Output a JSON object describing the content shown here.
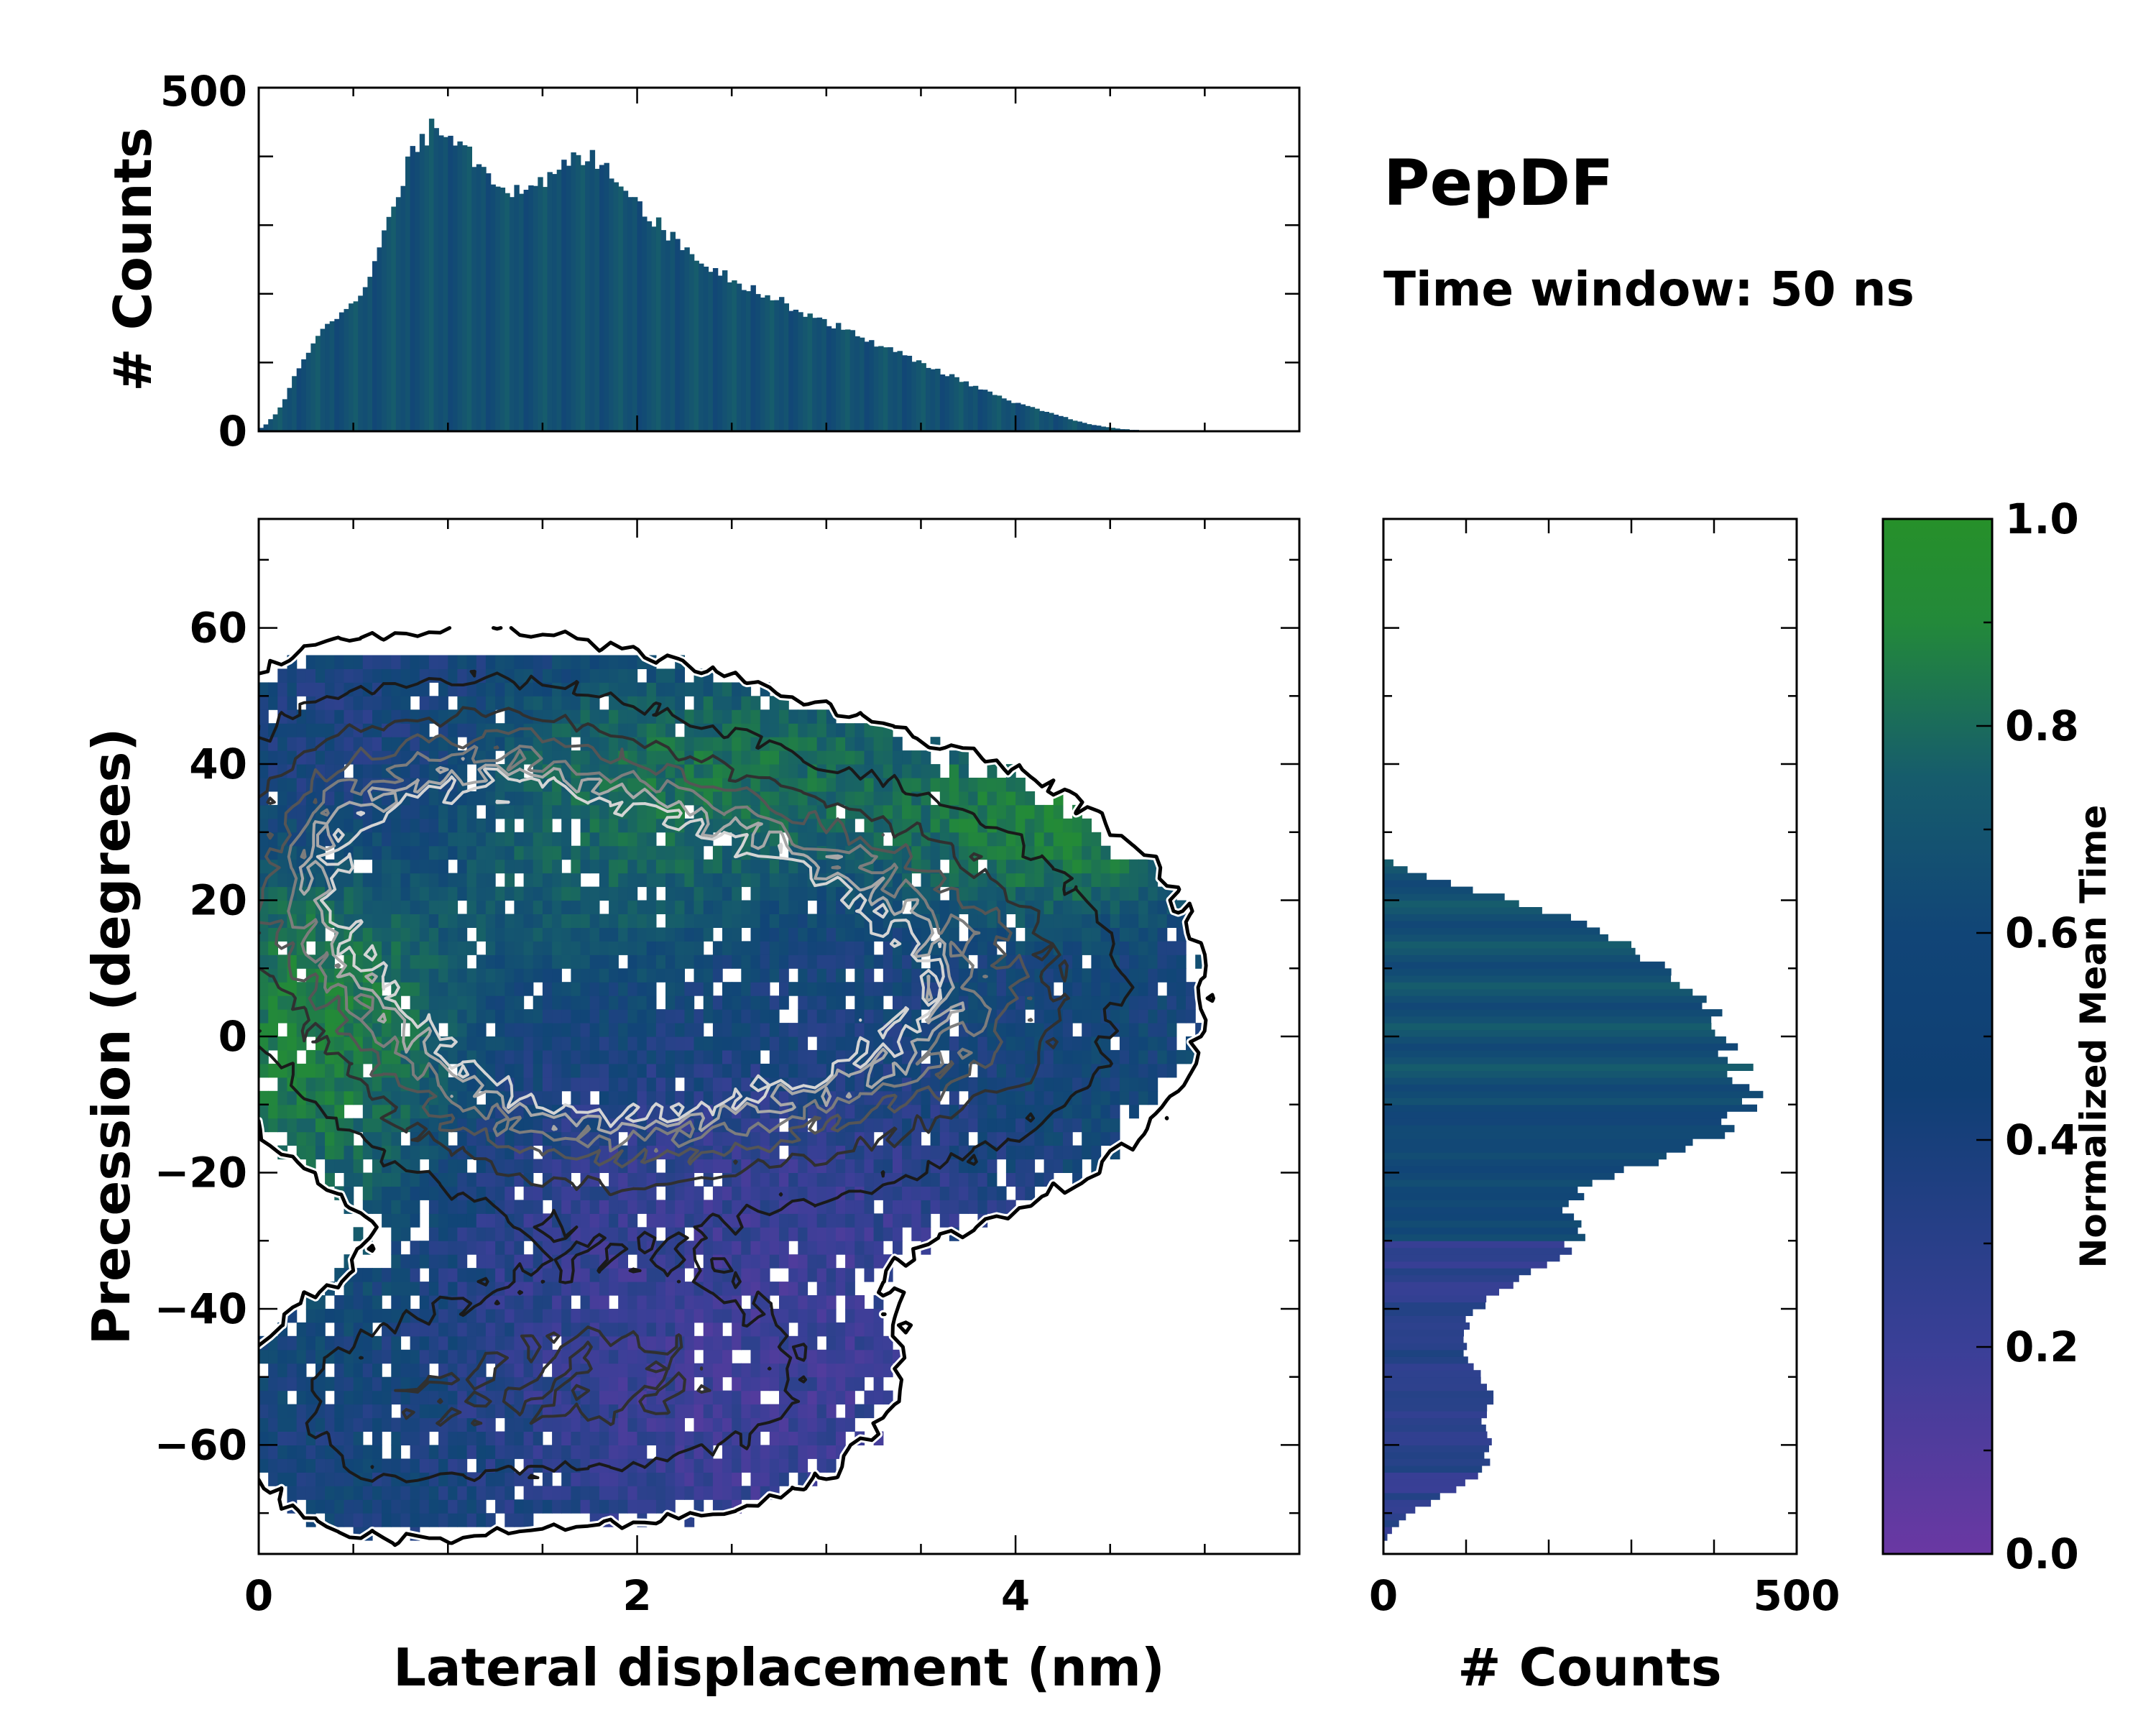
{
  "chart_data": {
    "type": "heatmap",
    "title": "PepDF",
    "subtitle": "Time window: 50 ns",
    "main": {
      "xlabel": "Lateral displacement (nm)",
      "ylabel": "Precession (degrees)",
      "xlim": [
        0,
        5.5
      ],
      "ylim": [
        -76,
        76
      ],
      "xticks": [
        0,
        2,
        4
      ],
      "yticks": [
        -60,
        -40,
        -20,
        0,
        20,
        40,
        60
      ],
      "colorbar_label": "Normalized Mean Time",
      "colorbar_range": [
        0.0,
        1.0
      ],
      "colorbar_ticks": [
        "0.0",
        "0.2",
        "0.4",
        "0.6",
        "0.8",
        "1.0"
      ],
      "colormap": [
        "#6a38a3",
        "#3a3f97",
        "#114577",
        "#165c6c",
        "#23893a",
        "#26902a"
      ],
      "blobs": [
        {
          "x": 1.0,
          "y": 25,
          "sx": 0.9,
          "sy": 17,
          "w": 1.0
        },
        {
          "x": 2.2,
          "y": 12,
          "sx": 1.0,
          "sy": 17,
          "w": 0.95
        },
        {
          "x": 3.4,
          "y": 5,
          "sx": 0.9,
          "sy": 18,
          "w": 0.55
        },
        {
          "x": 1.6,
          "y": -8,
          "sx": 0.8,
          "sy": 12,
          "w": 0.5
        },
        {
          "x": 1.9,
          "y": -50,
          "sx": 0.9,
          "sy": 13,
          "w": 0.5
        },
        {
          "x": 0.6,
          "y": -57,
          "sx": 0.5,
          "sy": 12,
          "w": 0.25
        }
      ],
      "time_zones": [
        {
          "x": 0.3,
          "y": 5,
          "sx": 0.4,
          "sy": 20,
          "v": 0.95
        },
        {
          "x": 2.4,
          "y": 38,
          "sx": 0.7,
          "sy": 8,
          "v": 0.85
        },
        {
          "x": 4.2,
          "y": 32,
          "sx": 0.5,
          "sy": 8,
          "v": 0.95
        },
        {
          "x": 1.6,
          "y": 28,
          "sx": 0.6,
          "sy": 10,
          "v": 0.7
        },
        {
          "x": 0.5,
          "y": 35,
          "sx": 0.5,
          "sy": 10,
          "v": 0.15
        },
        {
          "x": 2.6,
          "y": -30,
          "sx": 0.9,
          "sy": 12,
          "v": 0.15
        },
        {
          "x": 2.6,
          "y": -55,
          "sx": 0.7,
          "sy": 14,
          "v": 0.1
        },
        {
          "x": 4.8,
          "y": -20,
          "sx": 0.5,
          "sy": 14,
          "v": 0.45
        }
      ]
    },
    "top_histogram": {
      "ylabel": "# Counts",
      "ylim": [
        0,
        500
      ],
      "yticks": [
        0,
        500
      ],
      "x_start": 0.0,
      "bin_width": 0.025,
      "counts": [
        5,
        10,
        18,
        25,
        35,
        48,
        62,
        78,
        92,
        105,
        118,
        130,
        142,
        152,
        160,
        166,
        170,
        172,
        176,
        180,
        188,
        198,
        210,
        226,
        245,
        265,
        285,
        305,
        325,
        345,
        365,
        385,
        400,
        415,
        425,
        432,
        438,
        440,
        442,
        440,
        436,
        430,
        425,
        418,
        410,
        400,
        392,
        385,
        378,
        372,
        366,
        360,
        355,
        350,
        346,
        344,
        345,
        348,
        352,
        356,
        362,
        368,
        374,
        380,
        386,
        390,
        394,
        396,
        398,
        398,
        396,
        394,
        390,
        386,
        380,
        372,
        365,
        356,
        348,
        340,
        332,
        324,
        316,
        308,
        300,
        294,
        288,
        282,
        276,
        270,
        265,
        260,
        255,
        250,
        245,
        240,
        236,
        232,
        228,
        224,
        220,
        217,
        214,
        210,
        207,
        204,
        200,
        197,
        194,
        191,
        188,
        185,
        182,
        179,
        176,
        173,
        170,
        167,
        164,
        161,
        158,
        155,
        152,
        149,
        146,
        143,
        140,
        137,
        134,
        131,
        128,
        125,
        122,
        119,
        116,
        113,
        110,
        107,
        104,
        101,
        98,
        95,
        92,
        89,
        86,
        83,
        80,
        77,
        74,
        71,
        68,
        65,
        62,
        59,
        56,
        53,
        50,
        47,
        44,
        42,
        40,
        38,
        36,
        34,
        32,
        30,
        28,
        26,
        24,
        22,
        20,
        18,
        16,
        14,
        12,
        10,
        9,
        8,
        7,
        6,
        5,
        4,
        3,
        3,
        2,
        2,
        1,
        1,
        1,
        1
      ],
      "bar_shades": [
        0.42,
        0.45,
        0.5,
        0.55,
        0.6,
        0.5,
        0.48,
        0.52
      ]
    },
    "right_histogram": {
      "xlabel": "# Counts",
      "xlim": [
        0,
        500
      ],
      "xticks": [
        0,
        500
      ],
      "y_start": -74,
      "bin_width": 1,
      "counts": [
        5,
        10,
        18,
        28,
        40,
        55,
        70,
        85,
        100,
        112,
        120,
        125,
        128,
        128,
        126,
        124,
        122,
        122,
        124,
        126,
        128,
        130,
        128,
        124,
        118,
        110,
        104,
        100,
        98,
        96,
        96,
        100,
        104,
        110,
        118,
        128,
        140,
        152,
        165,
        178,
        192,
        206,
        218,
        228,
        234,
        236,
        232,
        228,
        226,
        228,
        234,
        244,
        258,
        276,
        298,
        322,
        345,
        368,
        388,
        405,
        418,
        428,
        434,
        438,
        440,
        440,
        438,
        434,
        430,
        428,
        426,
        424,
        420,
        416,
        412,
        406,
        400,
        394,
        388,
        380,
        372,
        364,
        355,
        345,
        334,
        322,
        310,
        296,
        280,
        262,
        242,
        220,
        196,
        170,
        142,
        112,
        82,
        54,
        30,
        12
      ],
      "bar_shades": [
        0.42,
        0.48,
        0.55,
        0.6,
        0.5,
        0.45
      ]
    }
  }
}
